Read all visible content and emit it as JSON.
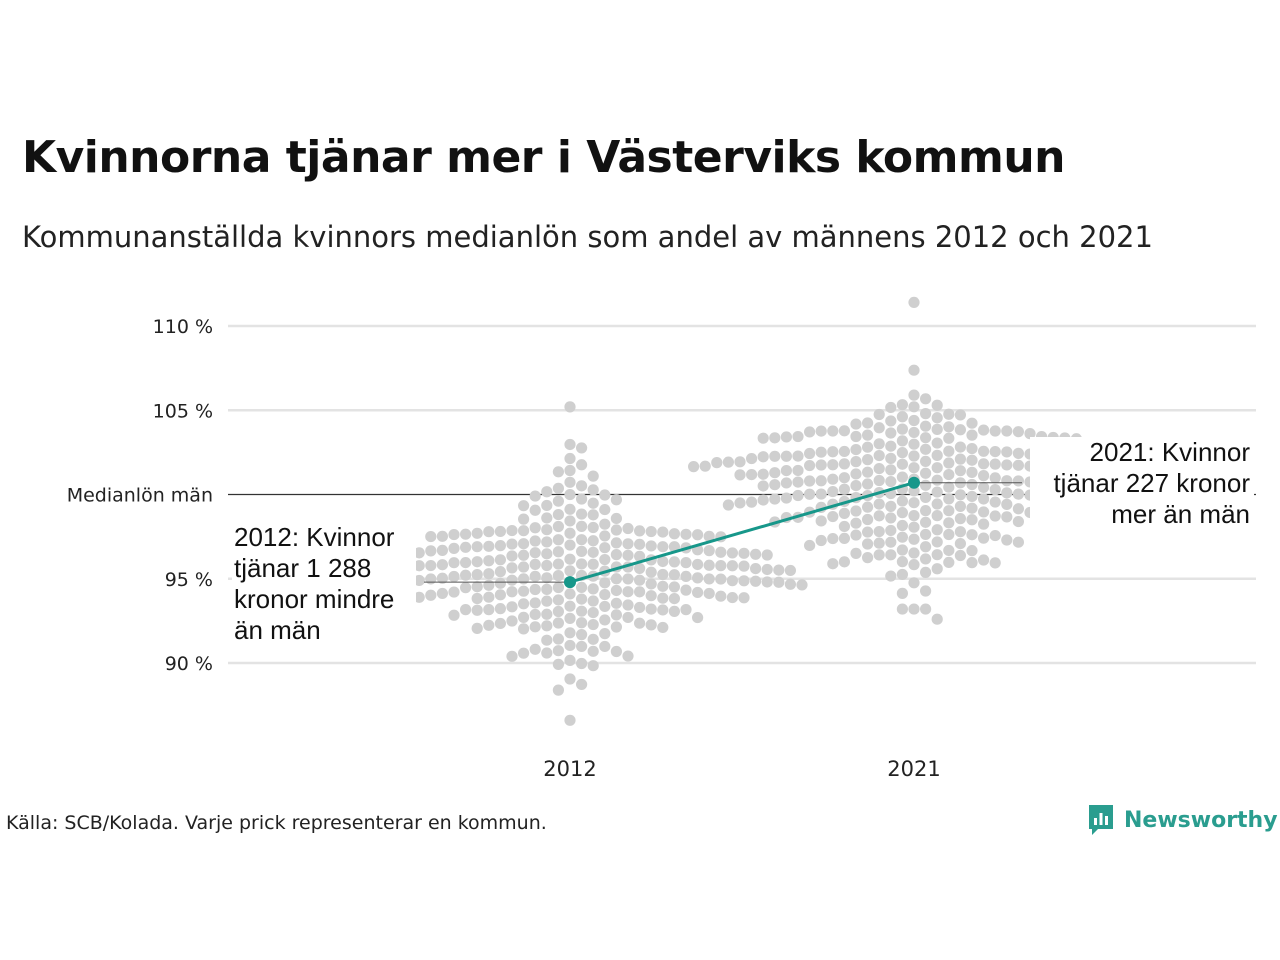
{
  "title": "Kvinnorna tjänar mer i Västerviks kommun",
  "subtitle": "Kommunanställda kvinnors medianlön som andel av männens 2012 och 2021",
  "source": "Källa: SCB/Kolada. Varje prick representerar en kommun.",
  "brand": "Newsworthy",
  "colors": {
    "accent": "#17978a",
    "dots": "#cfcfcf",
    "grid": "#e3e3e3",
    "reference_line": "#333333"
  },
  "chart_data": {
    "type": "scatter",
    "xcategories": [
      "2012",
      "2021"
    ],
    "ylim": [
      86,
      112
    ],
    "yticks": [
      {
        "value": 110,
        "label": "110 %"
      },
      {
        "value": 105,
        "label": "105 %"
      },
      {
        "value": 100,
        "label": "Medianlön män"
      },
      {
        "value": 95,
        "label": "95 %"
      },
      {
        "value": 90,
        "label": "90 %"
      }
    ],
    "highlight": {
      "2012": 94.8,
      "2021": 100.7
    },
    "annotations": [
      {
        "year": "2012",
        "text": [
          "2012: Kvinnor",
          "tjänar 1 288",
          "kronor mindre",
          "än män"
        ]
      },
      {
        "year": "2021",
        "text": [
          "2021: Kvinnor",
          "tjänar 227 kronor",
          "mer än män"
        ]
      }
    ],
    "distributions": {
      "2012": {
        "n": 290,
        "median": 95.6,
        "spread": 2.6,
        "min": 86.6,
        "max": 105.2
      },
      "2021": {
        "n": 290,
        "median": 100.3,
        "spread": 2.6,
        "min": 92.6,
        "max": 111.4
      }
    }
  }
}
